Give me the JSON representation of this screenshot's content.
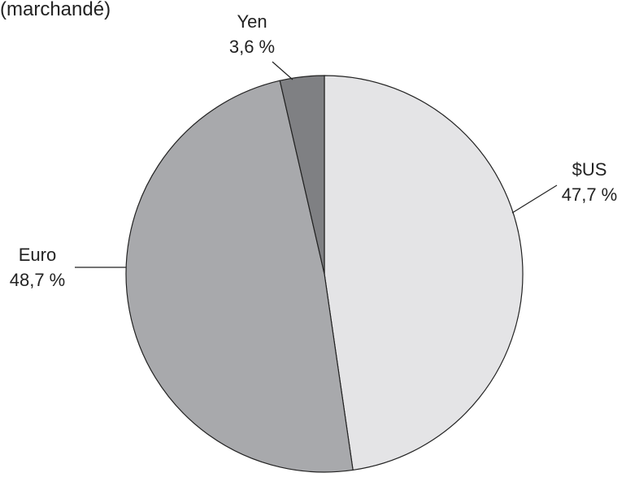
{
  "chart_data": {
    "type": "pie",
    "title": "(marchandé)",
    "slices": [
      {
        "label": "$US",
        "value": 47.7,
        "value_text": "47,7 %",
        "color": "#e4e4e6"
      },
      {
        "label": "Euro",
        "value": 48.7,
        "value_text": "48,7 %",
        "color": "#a8a9ac"
      },
      {
        "label": "Yen",
        "value": 3.6,
        "value_text": "3,6 %",
        "color": "#7f8083"
      }
    ],
    "start": "12 o'clock",
    "direction": "clockwise",
    "edge_color": "#222222"
  }
}
